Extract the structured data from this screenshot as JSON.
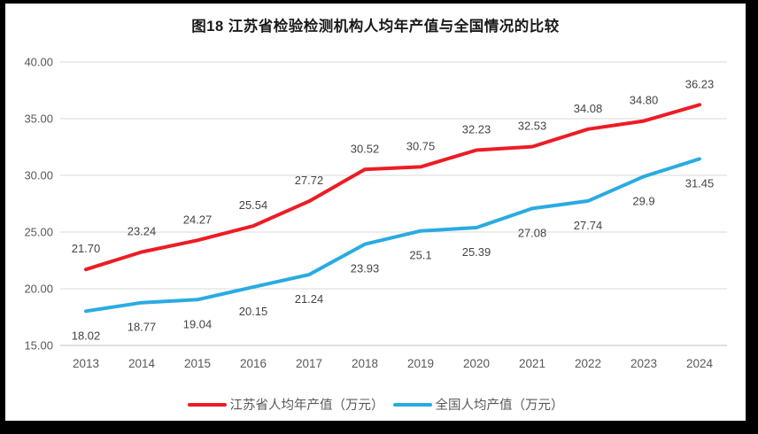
{
  "title": "图18  江苏省检验检测机构人均年产值与全国情况的比较",
  "chart_data": {
    "type": "line",
    "categories": [
      "2013",
      "2014",
      "2015",
      "2016",
      "2017",
      "2018",
      "2019",
      "2020",
      "2021",
      "2022",
      "2023",
      "2024"
    ],
    "series": [
      {
        "name": "江苏省人均年产值（万元）",
        "color": "#ED1C24",
        "values": [
          21.7,
          23.24,
          24.27,
          25.54,
          27.72,
          30.52,
          30.75,
          32.23,
          32.53,
          34.08,
          34.8,
          36.23
        ],
        "labels": [
          "21.70",
          "23.24",
          "24.27",
          "25.54",
          "27.72",
          "30.52",
          "30.75",
          "32.23",
          "32.53",
          "34.08",
          "34.80",
          "36.23"
        ],
        "label_position": "above"
      },
      {
        "name": "全国人均产值（万元）",
        "color": "#29ABE2",
        "values": [
          18.02,
          18.77,
          19.04,
          20.15,
          21.24,
          23.93,
          25.1,
          25.39,
          27.08,
          27.74,
          29.9,
          31.45
        ],
        "labels": [
          "18.02",
          "18.77",
          "19.04",
          "20.15",
          "21.24",
          "23.93",
          "25.1",
          "25.39",
          "27.08",
          "27.74",
          "29.9",
          "31.45"
        ],
        "label_position": "below"
      }
    ],
    "title": "图18  江苏省检验检测机构人均年产值与全国情况的比较",
    "xlabel": "",
    "ylabel": "",
    "ylim": [
      15,
      40
    ],
    "ytick_step": 5,
    "yticks": [
      "40.00",
      "35.00",
      "30.00",
      "25.00",
      "20.00",
      "15.00"
    ],
    "grid": true,
    "legend_position": "bottom"
  },
  "legend": {
    "items": [
      {
        "label": "江苏省人均年产值（万元）",
        "color": "#ED1C24"
      },
      {
        "label": "全国人均产值（万元）",
        "color": "#29ABE2"
      }
    ]
  },
  "colors": {
    "frame": "#000000",
    "background": "#ffffff",
    "gridline": "#D9D9D9",
    "axis_line": "#BFBFBF",
    "tick_text": "#595959",
    "data_label_text": "#444444",
    "title_text": "#1a1a1a"
  }
}
